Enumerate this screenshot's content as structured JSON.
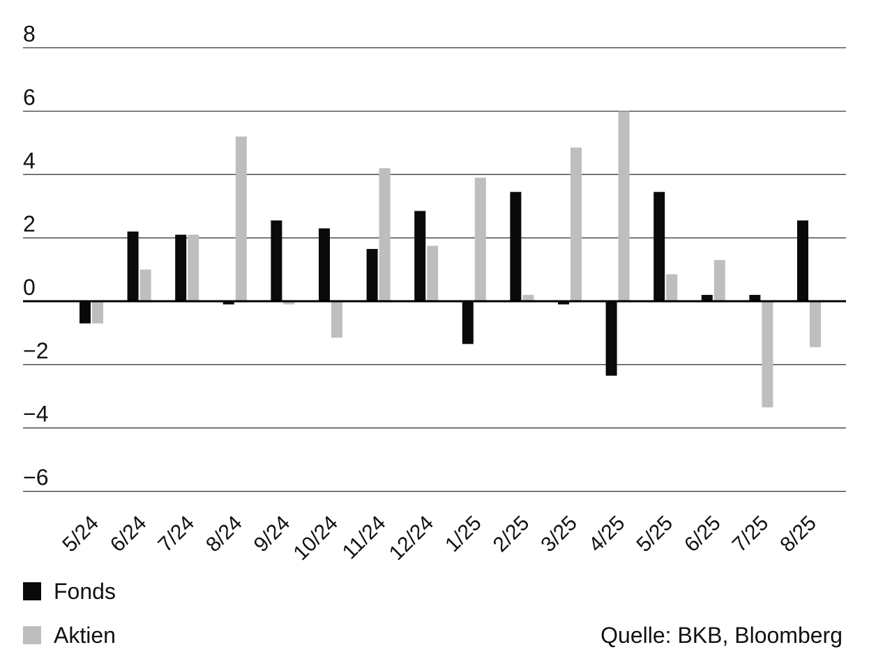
{
  "chart_data": {
    "type": "bar",
    "categories": [
      "5/24",
      "6/24",
      "7/24",
      "8/24",
      "9/24",
      "10/24",
      "11/24",
      "12/24",
      "1/25",
      "2/25",
      "3/25",
      "4/25",
      "5/25",
      "6/25",
      "7/25",
      "8/25"
    ],
    "series": [
      {
        "name": "Fonds",
        "color": "#0a0a0a",
        "values": [
          -0.7,
          2.2,
          2.1,
          -0.1,
          2.55,
          2.3,
          1.65,
          2.85,
          -1.35,
          3.45,
          -0.1,
          -2.35,
          3.45,
          0.2,
          0.2,
          2.55
        ]
      },
      {
        "name": "Aktien",
        "color": "#bdbebd",
        "values": [
          -0.7,
          1.0,
          2.1,
          5.2,
          -0.1,
          -1.15,
          4.2,
          1.75,
          3.9,
          0.2,
          4.85,
          6.0,
          0.85,
          1.3,
          -3.35,
          -1.45
        ]
      }
    ],
    "yticks": [
      8,
      6,
      4,
      2,
      0,
      -2,
      -4,
      -6
    ],
    "ytick_labels": [
      "8",
      "6",
      "4",
      "2",
      "0",
      "−2",
      "−4",
      "−6"
    ],
    "ylim": [
      -6,
      8
    ],
    "grid": true,
    "legend_position": "bottom-left",
    "title": "",
    "xlabel": "",
    "ylabel": ""
  },
  "legend": {
    "fonds_label": "Fonds",
    "aktien_label": "Aktien"
  },
  "source": "Quelle: BKB, Bloomberg"
}
